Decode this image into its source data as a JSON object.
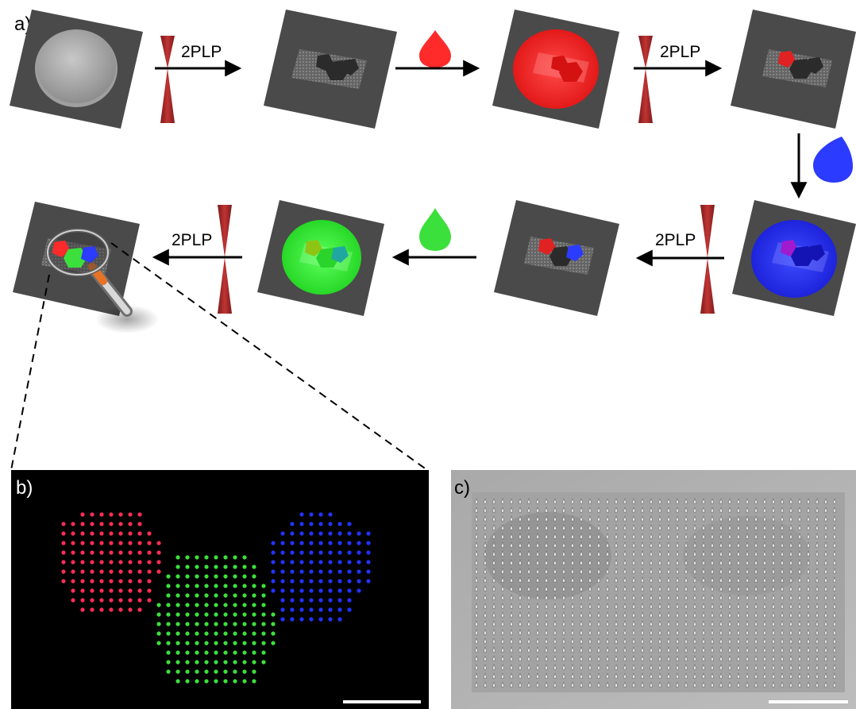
{
  "panels": {
    "a": {
      "label": "a)"
    },
    "b": {
      "label": "b)"
    },
    "c": {
      "label": "c)"
    }
  },
  "process": {
    "step_label": "2PLP",
    "stages_row1": [
      "blank resist film",
      "2PLP: black pentagon + hexagon",
      "red resin drop",
      "2PLP: red pentagon"
    ],
    "stages_row2": [
      "blue resin coat",
      "2PLP: blue pentagon",
      "green resin drop",
      "green resin coat",
      "2PLP: green hexagon, inspection"
    ]
  },
  "colors": {
    "substrate": "#4a4a4a",
    "laser": "#a82828",
    "red": "#ff2a2a",
    "green": "#3ce03c",
    "blue": "#2b3bff",
    "magnifier_handle": "#e87326"
  },
  "icons": {
    "laser": "laser-focus-icon",
    "drop": "drop-icon",
    "magnifier": "magnifier-icon",
    "arrow": "arrow-icon"
  },
  "fluorescence_image": {
    "red_region": "hexagon-left",
    "green_region": "hexagon-center",
    "blue_region": "pentagon-right",
    "scale_bar": true
  },
  "sem_image": {
    "array": "pillar array",
    "scale_bar": true
  }
}
